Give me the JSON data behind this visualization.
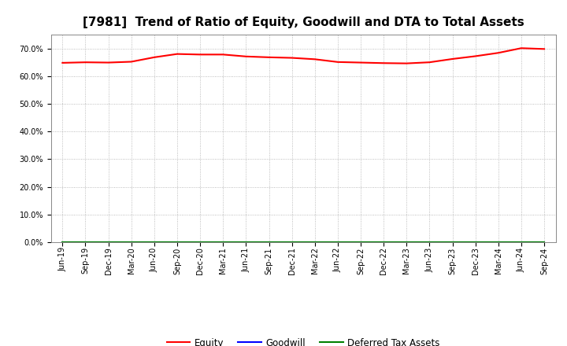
{
  "title": "[7981]  Trend of Ratio of Equity, Goodwill and DTA to Total Assets",
  "x_labels": [
    "Jun-19",
    "Sep-19",
    "Dec-19",
    "Mar-20",
    "Jun-20",
    "Sep-20",
    "Dec-20",
    "Mar-21",
    "Jun-21",
    "Sep-21",
    "Dec-21",
    "Mar-22",
    "Jun-22",
    "Sep-22",
    "Dec-22",
    "Mar-23",
    "Jun-23",
    "Sep-23",
    "Dec-23",
    "Mar-24",
    "Jun-24",
    "Sep-24"
  ],
  "equity": [
    0.648,
    0.65,
    0.649,
    0.652,
    0.668,
    0.68,
    0.678,
    0.678,
    0.671,
    0.668,
    0.666,
    0.661,
    0.651,
    0.649,
    0.647,
    0.646,
    0.65,
    0.662,
    0.672,
    0.684,
    0.701,
    0.698
  ],
  "goodwill": [
    0.0,
    0.0,
    0.0,
    0.0,
    0.0,
    0.0,
    0.0,
    0.0,
    0.0,
    0.0,
    0.0,
    0.0,
    0.0,
    0.0,
    0.0,
    0.0,
    0.0,
    0.0,
    0.0,
    0.0,
    0.0,
    0.0
  ],
  "dta": [
    0.0,
    0.0,
    0.0,
    0.0,
    0.0,
    0.0,
    0.0,
    0.0,
    0.0,
    0.0,
    0.0,
    0.0,
    0.0,
    0.0,
    0.0,
    0.0,
    0.0,
    0.0,
    0.0,
    0.0,
    0.0,
    0.0
  ],
  "equity_color": "#FF0000",
  "goodwill_color": "#0000FF",
  "dta_color": "#008000",
  "ylim": [
    0.0,
    0.75
  ],
  "yticks": [
    0.0,
    0.1,
    0.2,
    0.3,
    0.4,
    0.5,
    0.6,
    0.7
  ],
  "background_color": "#FFFFFF",
  "plot_bg_color": "#FFFFFF",
  "grid_color": "#AAAAAA",
  "title_fontsize": 11,
  "tick_fontsize": 7,
  "legend_labels": [
    "Equity",
    "Goodwill",
    "Deferred Tax Assets"
  ],
  "legend_fontsize": 8.5
}
